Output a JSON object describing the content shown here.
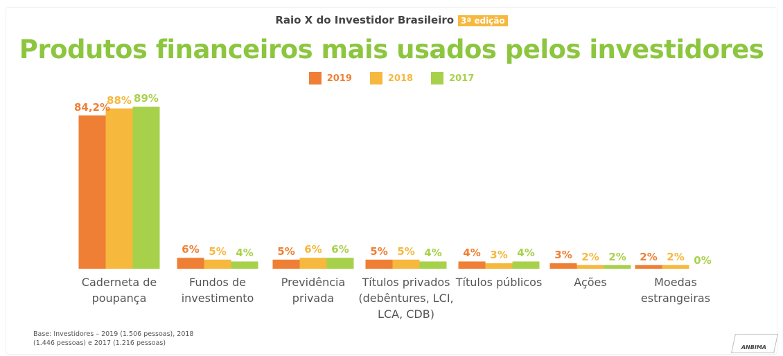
{
  "chart_data": {
    "type": "bar",
    "header": "Raio X do Investidor Brasileiro",
    "edition": "3ª edição",
    "title": "Produtos financeiros mais usados pelos investidores",
    "categories": [
      "Caderneta de poupança",
      "Fundos de investimento",
      "Previdência privada",
      "Títulos privados (debêntures, LCI, LCA, CDB)",
      "Títulos públicos",
      "Ações",
      "Moedas estrangeiras"
    ],
    "series": [
      {
        "name": "2019",
        "color": "#ef7f35",
        "values": [
          84.2,
          6,
          5,
          5,
          4,
          3,
          2
        ],
        "value_labels": [
          "84,2%",
          "6%",
          "5%",
          "5%",
          "4%",
          "3%",
          "2%"
        ]
      },
      {
        "name": "2018",
        "color": "#f6b83d",
        "values": [
          88,
          5,
          6,
          5,
          3,
          2,
          2
        ],
        "value_labels": [
          "88%",
          "5%",
          "6%",
          "5%",
          "3%",
          "2%",
          "2%"
        ]
      },
      {
        "name": "2017",
        "color": "#a8d14b",
        "values": [
          89,
          4,
          6,
          4,
          4,
          2,
          0
        ],
        "value_labels": [
          "89%",
          "4%",
          "6%",
          "4%",
          "4%",
          "2%",
          "0%"
        ]
      }
    ],
    "ylim": [
      0,
      100
    ],
    "note": "Base: Investidores – 2019 (1.506 pessoas), 2018 (1.446 pessoas) e 2017 (1.216 pessoas)",
    "logo": "ANBIMA"
  }
}
